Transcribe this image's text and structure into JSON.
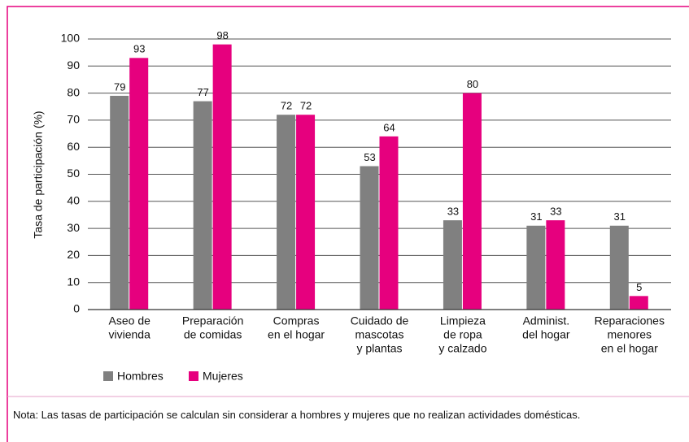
{
  "chart_data": {
    "type": "bar",
    "y_label": "Tasa de participación (%)",
    "categories": [
      [
        "Aseo de",
        "vivienda"
      ],
      [
        "Preparación",
        "de comidas"
      ],
      [
        "Compras",
        "en el hogar"
      ],
      [
        "Cuidado de",
        "mascotas",
        "y plantas"
      ],
      [
        "Limpieza",
        "de ropa",
        "y calzado"
      ],
      [
        "Administ.",
        "del hogar"
      ],
      [
        "Reparaciones",
        "menores",
        "en el hogar"
      ]
    ],
    "series": [
      {
        "name": "Hombres",
        "color": "#808080",
        "values": [
          79,
          77,
          72,
          53,
          33,
          31,
          31
        ]
      },
      {
        "name": "Mujeres",
        "color": "#e6007e",
        "values": [
          93,
          98,
          72,
          64,
          80,
          33,
          5
        ]
      }
    ],
    "ylim": [
      0,
      100
    ],
    "yticks": [
      0,
      10,
      20,
      30,
      40,
      50,
      60,
      70,
      80,
      90,
      100
    ],
    "grid": true,
    "note": "Nota: Las tasas de participación se calculan sin considerar a hombres y mujeres que no realizan actividades domésticas."
  }
}
